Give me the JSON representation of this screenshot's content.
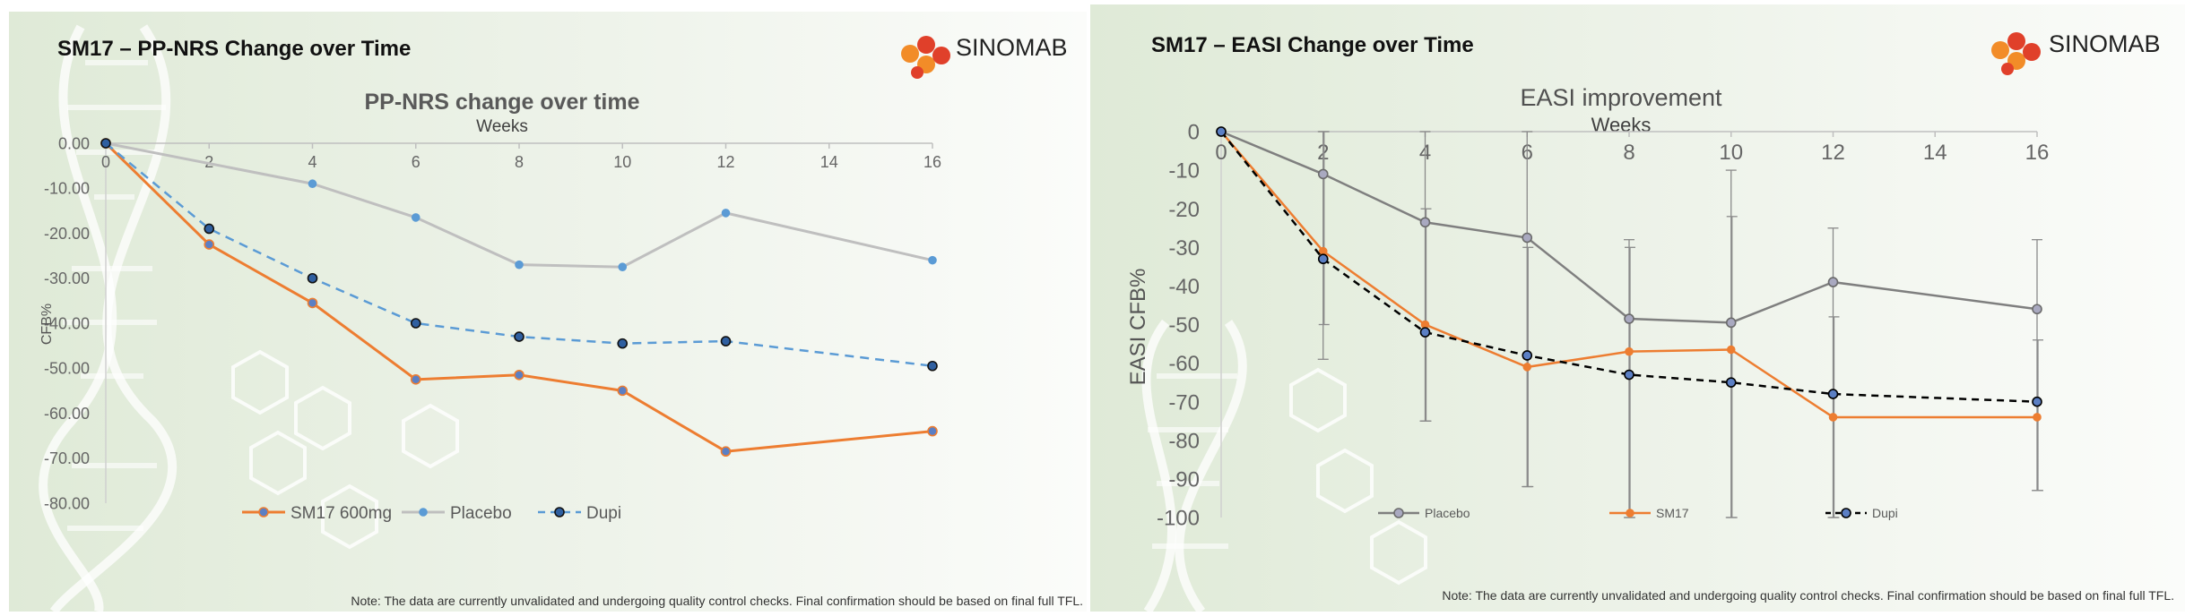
{
  "slides": [
    {
      "slide_title": "SM17 – PP-NRS Change over Time",
      "logo_text": "SINOMAB",
      "note": "Note: The data are currently unvalidated and undergoing quality control checks. Final confirmation should be based on final full TFL."
    },
    {
      "slide_title": "SM17 – EASI Change over Time",
      "logo_text": "SINOMAB",
      "note": "Note: The data are currently unvalidated and undergoing quality control checks. Final confirmation should be based on final full TFL."
    }
  ],
  "colors": {
    "sm17": "#ED7D31",
    "placebo_left": "#BFBFBF",
    "placebo_marker": "#5B9BD5",
    "dupi_left": "#5B9BD5",
    "placebo_right": "#7F7F7F",
    "dupi_right": "#000000",
    "logo_orange": "#F28C28",
    "logo_red": "#E0402A"
  },
  "chart_data": [
    {
      "type": "line",
      "title": "PP-NRS change over time",
      "xlabel": "Weeks",
      "ylabel": "CFB%",
      "x_ticks": [
        0,
        2,
        4,
        6,
        8,
        10,
        12,
        14,
        16
      ],
      "y_ticks": [
        "0.00",
        "-10.00",
        "-20.00",
        "-30.00",
        "-40.00",
        "-50.00",
        "-60.00",
        "-70.00",
        "-80.00"
      ],
      "xlim": [
        0,
        16
      ],
      "ylim": [
        -80,
        0
      ],
      "legend_position": "bottom",
      "series": [
        {
          "name": "SM17 600mg",
          "style": "solid",
          "x": [
            0,
            2,
            4,
            6,
            8,
            10,
            12,
            16
          ],
          "values": [
            0,
            -22.5,
            -35.5,
            -52.5,
            -51.5,
            -55,
            -68.5,
            -64
          ]
        },
        {
          "name": "Placebo",
          "style": "solid",
          "x": [
            0,
            4,
            6,
            8,
            10,
            12,
            16
          ],
          "values": [
            0,
            -9,
            -16.5,
            -27,
            -27.5,
            -15.5,
            -26
          ]
        },
        {
          "name": "Dupi",
          "style": "dashed",
          "x": [
            0,
            2,
            4,
            6,
            8,
            10,
            12,
            16
          ],
          "values": [
            0,
            -19,
            -30,
            -40,
            -43,
            -44.5,
            -44,
            -49.5
          ]
        }
      ]
    },
    {
      "type": "line",
      "title": "EASI improvement",
      "xlabel": "Weeks",
      "ylabel": "EASI CFB%",
      "x_ticks": [
        0,
        2,
        4,
        6,
        8,
        10,
        12,
        14,
        16
      ],
      "y_ticks": [
        "0",
        "-10",
        "-20",
        "-30",
        "-40",
        "-50",
        "-60",
        "-70",
        "-80",
        "-90",
        "-100"
      ],
      "xlim": [
        0,
        16
      ],
      "ylim": [
        -100,
        0
      ],
      "legend_position": "bottom",
      "series": [
        {
          "name": "Placebo",
          "style": "solid",
          "x": [
            0,
            2,
            4,
            6,
            8,
            10,
            12,
            16
          ],
          "values": [
            0,
            -11,
            -23.5,
            -27.5,
            -48.5,
            -49.5,
            -39,
            -46
          ],
          "err_low": [
            0,
            -59,
            -75,
            -92,
            -100,
            -100,
            -100,
            -93
          ],
          "err_high": [
            0,
            0,
            0,
            0,
            -28,
            -10,
            -25,
            -28
          ]
        },
        {
          "name": "SM17",
          "style": "solid",
          "x": [
            0,
            2,
            4,
            6,
            8,
            10,
            12,
            16
          ],
          "values": [
            0,
            -31,
            -50,
            -61,
            -57,
            -56.5,
            -74,
            -74
          ],
          "err_low": [
            0,
            -50,
            -75,
            -92,
            -100,
            -100,
            -100,
            -93
          ],
          "err_high": [
            0,
            0,
            -20,
            -30,
            -30,
            -22,
            -48,
            -54
          ]
        },
        {
          "name": "Dupi",
          "style": "dashed",
          "x": [
            0,
            2,
            4,
            6,
            8,
            10,
            12,
            16
          ],
          "values": [
            0,
            -33,
            -52,
            -58,
            -63,
            -65,
            -68,
            -70
          ]
        }
      ]
    }
  ]
}
